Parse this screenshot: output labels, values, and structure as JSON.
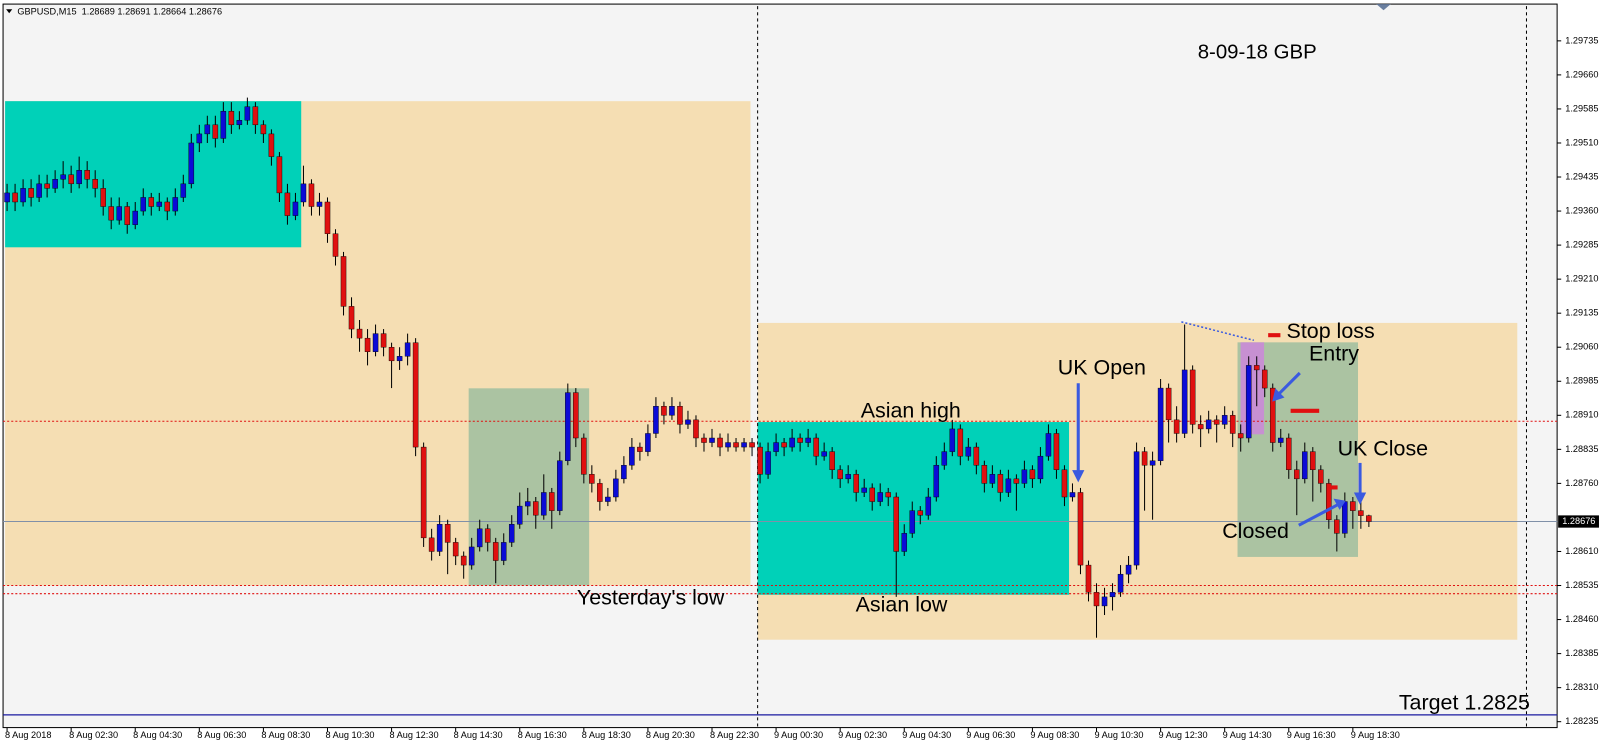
{
  "chart_data": {
    "type": "candlestick",
    "header": "GBPUSD,M15  1.28689 1.28691 1.28664 1.28676",
    "colors": {
      "up": "#0b0bd6",
      "down": "#e01010",
      "wick": "#000000",
      "level": "#e01010",
      "target": "#1a1aa0",
      "current": "#8090a8"
    },
    "xlim": [
      -0.5,
      193.5
    ],
    "ylim": [
      1.28222,
      1.29807
    ],
    "yticks": [
      1.29735,
      {
        "value": 1.2966,
        "label": "1.29660"
      },
      1.29585,
      {
        "value": 1.2951,
        "label": "1.29510"
      },
      1.29435,
      {
        "value": 1.2936,
        "label": "1.29360"
      },
      1.29285,
      {
        "value": 1.2921,
        "label": "1.29210"
      },
      1.29135,
      {
        "value": 1.2906,
        "label": "1.29060"
      },
      1.28985,
      {
        "value": 1.2891,
        "label": "1.28910"
      },
      1.28835,
      {
        "value": 1.2876,
        "label": "1.28760"
      },
      {
        "value": 1.2861,
        "label": "1.28610"
      },
      1.28535,
      {
        "value": 1.2846,
        "label": "1.28460"
      },
      1.28385,
      {
        "value": 1.2831,
        "label": "1.28310"
      },
      1.28235
    ],
    "xticks": [
      {
        "value": 0,
        "label": "8 Aug 2018"
      },
      {
        "value": 8,
        "label": "8 Aug 02:30"
      },
      {
        "value": 16,
        "label": "8 Aug 04:30"
      },
      {
        "value": 24,
        "label": "8 Aug 06:30"
      },
      {
        "value": 32,
        "label": "8 Aug 08:30"
      },
      {
        "value": 40,
        "label": "8 Aug 10:30"
      },
      {
        "value": 48,
        "label": "8 Aug 12:30"
      },
      {
        "value": 56,
        "label": "8 Aug 14:30"
      },
      {
        "value": 64,
        "label": "8 Aug 16:30"
      },
      {
        "value": 72,
        "label": "8 Aug 18:30"
      },
      {
        "value": 80,
        "label": "8 Aug 20:30"
      },
      {
        "value": 88,
        "label": "8 Aug 22:30"
      },
      {
        "value": 96,
        "label": "9 Aug 00:30"
      },
      {
        "value": 104,
        "label": "9 Aug 02:30"
      },
      {
        "value": 112,
        "label": "9 Aug 04:30"
      },
      {
        "value": 120,
        "label": "9 Aug 06:30"
      },
      {
        "value": 128,
        "label": "9 Aug 08:30"
      },
      {
        "value": 136,
        "label": "9 Aug 10:30"
      },
      {
        "value": 144,
        "label": "9 Aug 12:30"
      },
      {
        "value": 152,
        "label": "9 Aug 14:30"
      },
      {
        "value": 160,
        "label": "9 Aug 16:30"
      },
      {
        "value": 168,
        "label": "9 Aug 18:30"
      }
    ],
    "current_price": 1.28676,
    "levels": [
      1.28897,
      1.28535,
      1.28517
    ],
    "target": {
      "value": 1.2825,
      "label": "Target  1.2825"
    },
    "annotations": [
      "8-09-18  GBP",
      "Stop loss",
      "Entry",
      "UK Open",
      "Asian high",
      "UK Close",
      "Closed",
      "Yesterday's low",
      "Asian low"
    ],
    "candles": [
      [
        1.2938,
        1.2942,
        1.2936,
        1.294
      ],
      [
        1.294,
        1.2942,
        1.2936,
        1.2938
      ],
      [
        1.2938,
        1.2943,
        1.2937,
        1.2941
      ],
      [
        1.2941,
        1.2943,
        1.2937,
        1.2939
      ],
      [
        1.2939,
        1.2944,
        1.2938,
        1.2942
      ],
      [
        1.2942,
        1.2944,
        1.2939,
        1.2941
      ],
      [
        1.2941,
        1.2945,
        1.294,
        1.2943
      ],
      [
        1.2943,
        1.2947,
        1.2941,
        1.2944
      ],
      [
        1.2944,
        1.2946,
        1.294,
        1.2942
      ],
      [
        1.2942,
        1.2948,
        1.2941,
        1.2945
      ],
      [
        1.2945,
        1.2947,
        1.2941,
        1.2943
      ],
      [
        1.2943,
        1.2945,
        1.2939,
        1.2941
      ],
      [
        1.2941,
        1.2943,
        1.2935,
        1.2937
      ],
      [
        1.2937,
        1.2939,
        1.2932,
        1.2934
      ],
      [
        1.2934,
        1.2939,
        1.2933,
        1.2937
      ],
      [
        1.2937,
        1.2938,
        1.2931,
        1.2933
      ],
      [
        1.2933,
        1.2938,
        1.2932,
        1.2936
      ],
      [
        1.2936,
        1.2941,
        1.2935,
        1.2939
      ],
      [
        1.2939,
        1.294,
        1.2935,
        1.2937
      ],
      [
        1.2937,
        1.294,
        1.2936,
        1.2938
      ],
      [
        1.2938,
        1.2939,
        1.2934,
        1.2936
      ],
      [
        1.2936,
        1.2941,
        1.2935,
        1.2939
      ],
      [
        1.2939,
        1.2944,
        1.2938,
        1.2942
      ],
      [
        1.2942,
        1.2953,
        1.2941,
        1.2951
      ],
      [
        1.2951,
        1.2955,
        1.2949,
        1.2953
      ],
      [
        1.2953,
        1.2957,
        1.2951,
        1.2955
      ],
      [
        1.2955,
        1.2957,
        1.295,
        1.2952
      ],
      [
        1.2952,
        1.296,
        1.2951,
        1.2958
      ],
      [
        1.2958,
        1.296,
        1.2953,
        1.2955
      ],
      [
        1.2955,
        1.2958,
        1.2954,
        1.2956
      ],
      [
        1.2956,
        1.2961,
        1.2955,
        1.2959
      ],
      [
        1.2959,
        1.296,
        1.2953,
        1.2955
      ],
      [
        1.2955,
        1.2956,
        1.2951,
        1.2953
      ],
      [
        1.2953,
        1.2954,
        1.2946,
        1.2948
      ],
      [
        1.2948,
        1.2949,
        1.2938,
        1.294
      ],
      [
        1.294,
        1.2942,
        1.2933,
        1.2935
      ],
      [
        1.2935,
        1.294,
        1.2934,
        1.2938
      ],
      [
        1.2938,
        1.2946,
        1.2937,
        1.2942
      ],
      [
        1.2942,
        1.2943,
        1.2935,
        1.2937
      ],
      [
        1.2937,
        1.294,
        1.2935,
        1.2938
      ],
      [
        1.2938,
        1.2939,
        1.2929,
        1.2931
      ],
      [
        1.2931,
        1.2932,
        1.2924,
        1.2926
      ],
      [
        1.2926,
        1.2927,
        1.2913,
        1.2915
      ],
      [
        1.2915,
        1.2917,
        1.2908,
        1.291
      ],
      [
        1.291,
        1.2912,
        1.2905,
        1.2908
      ],
      [
        1.2908,
        1.291,
        1.2902,
        1.2905
      ],
      [
        1.2905,
        1.2911,
        1.2904,
        1.2909
      ],
      [
        1.2909,
        1.291,
        1.2904,
        1.2906
      ],
      [
        1.2906,
        1.2907,
        1.2897,
        1.2903
      ],
      [
        1.2903,
        1.2906,
        1.2901,
        1.2904
      ],
      [
        1.2904,
        1.2909,
        1.2902,
        1.2907
      ],
      [
        1.2907,
        1.2908,
        1.2882,
        1.2884
      ],
      [
        1.2884,
        1.2885,
        1.2862,
        1.2864
      ],
      [
        1.2864,
        1.2866,
        1.2859,
        1.2861
      ],
      [
        1.2861,
        1.2869,
        1.286,
        1.2867
      ],
      [
        1.2867,
        1.2868,
        1.2856,
        1.2863
      ],
      [
        1.2863,
        1.2864,
        1.2858,
        1.286
      ],
      [
        1.286,
        1.2861,
        1.2855,
        1.2858
      ],
      [
        1.2858,
        1.2864,
        1.2857,
        1.2862
      ],
      [
        1.2862,
        1.2868,
        1.2861,
        1.2866
      ],
      [
        1.2866,
        1.2867,
        1.2861,
        1.2863
      ],
      [
        1.2863,
        1.2864,
        1.2854,
        1.2859
      ],
      [
        1.2859,
        1.2865,
        1.2858,
        1.2863
      ],
      [
        1.2863,
        1.2869,
        1.2862,
        1.2867
      ],
      [
        1.2867,
        1.2874,
        1.2866,
        1.2871
      ],
      [
        1.2871,
        1.2875,
        1.2869,
        1.2872
      ],
      [
        1.2872,
        1.2873,
        1.2866,
        1.2869
      ],
      [
        1.2869,
        1.2878,
        1.2868,
        1.2874
      ],
      [
        1.2874,
        1.2875,
        1.2866,
        1.287
      ],
      [
        1.287,
        1.2883,
        1.2869,
        1.2881
      ],
      [
        1.2881,
        1.2898,
        1.288,
        1.2896
      ],
      [
        1.2896,
        1.2897,
        1.2884,
        1.2886
      ],
      [
        1.2886,
        1.2887,
        1.2876,
        1.2878
      ],
      [
        1.2878,
        1.288,
        1.2874,
        1.2876
      ],
      [
        1.2876,
        1.2877,
        1.287,
        1.2872
      ],
      [
        1.2872,
        1.2875,
        1.2871,
        1.2873
      ],
      [
        1.2873,
        1.2879,
        1.2872,
        1.2877
      ],
      [
        1.2877,
        1.2882,
        1.2876,
        1.288
      ],
      [
        1.288,
        1.2886,
        1.2879,
        1.2884
      ],
      [
        1.2884,
        1.2885,
        1.2881,
        1.2883
      ],
      [
        1.2883,
        1.2889,
        1.2882,
        1.2887
      ],
      [
        1.2887,
        1.2895,
        1.2886,
        1.2893
      ],
      [
        1.2893,
        1.2894,
        1.2889,
        1.2891
      ],
      [
        1.2891,
        1.2895,
        1.289,
        1.2893
      ],
      [
        1.2893,
        1.2894,
        1.2887,
        1.2889
      ],
      [
        1.2889,
        1.2892,
        1.2888,
        1.289
      ],
      [
        1.289,
        1.2891,
        1.2884,
        1.2886
      ],
      [
        1.2886,
        1.2887,
        1.2883,
        1.2885
      ],
      [
        1.2885,
        1.2888,
        1.2884,
        1.2886
      ],
      [
        1.2886,
        1.2887,
        1.2882,
        1.2884
      ],
      [
        1.2884,
        1.2887,
        1.2883,
        1.2885
      ],
      [
        1.2885,
        1.2886,
        1.2883,
        1.2884
      ],
      [
        1.2884,
        1.2886,
        1.2883,
        1.2885
      ],
      [
        1.2885,
        1.2886,
        1.2882,
        1.2884
      ],
      [
        1.2884,
        1.2885,
        1.2876,
        1.2878
      ],
      [
        1.2878,
        1.2885,
        1.2877,
        1.2883
      ],
      [
        1.2883,
        1.2887,
        1.2882,
        1.2885
      ],
      [
        1.2885,
        1.2886,
        1.2882,
        1.2884
      ],
      [
        1.2884,
        1.2888,
        1.2883,
        1.2886
      ],
      [
        1.2886,
        1.2887,
        1.2883,
        1.2885
      ],
      [
        1.2885,
        1.2888,
        1.2884,
        1.2886
      ],
      [
        1.2886,
        1.2887,
        1.288,
        1.2882
      ],
      [
        1.2882,
        1.2885,
        1.2881,
        1.2883
      ],
      [
        1.2883,
        1.2884,
        1.2877,
        1.2879
      ],
      [
        1.2879,
        1.288,
        1.2875,
        1.2877
      ],
      [
        1.2877,
        1.288,
        1.2876,
        1.2878
      ],
      [
        1.2878,
        1.2879,
        1.2872,
        1.2874
      ],
      [
        1.2874,
        1.2877,
        1.2873,
        1.2875
      ],
      [
        1.2875,
        1.2876,
        1.287,
        1.2872
      ],
      [
        1.2872,
        1.2876,
        1.2871,
        1.2874
      ],
      [
        1.2874,
        1.2875,
        1.2871,
        1.2873
      ],
      [
        1.2873,
        1.2874,
        1.2851,
        1.2861
      ],
      [
        1.2861,
        1.2867,
        1.286,
        1.2865
      ],
      [
        1.2865,
        1.2872,
        1.2864,
        1.287
      ],
      [
        1.287,
        1.2871,
        1.2867,
        1.2869
      ],
      [
        1.2869,
        1.2875,
        1.2868,
        1.2873
      ],
      [
        1.2873,
        1.2882,
        1.2872,
        1.288
      ],
      [
        1.288,
        1.2885,
        1.2879,
        1.2883
      ],
      [
        1.2883,
        1.289,
        1.2882,
        1.2888
      ],
      [
        1.2888,
        1.2889,
        1.288,
        1.2882
      ],
      [
        1.2882,
        1.2886,
        1.2881,
        1.2884
      ],
      [
        1.2884,
        1.2885,
        1.2878,
        1.288
      ],
      [
        1.288,
        1.2881,
        1.2874,
        1.2876
      ],
      [
        1.2876,
        1.288,
        1.2875,
        1.2878
      ],
      [
        1.2878,
        1.2879,
        1.2872,
        1.2874
      ],
      [
        1.2874,
        1.2879,
        1.2873,
        1.2877
      ],
      [
        1.2877,
        1.2878,
        1.287,
        1.2876
      ],
      [
        1.2876,
        1.2881,
        1.2875,
        1.2879
      ],
      [
        1.2879,
        1.288,
        1.2875,
        1.2877
      ],
      [
        1.2877,
        1.2884,
        1.2876,
        1.2882
      ],
      [
        1.2882,
        1.2889,
        1.2881,
        1.2887
      ],
      [
        1.2887,
        1.2888,
        1.2877,
        1.2879
      ],
      [
        1.2879,
        1.288,
        1.2871,
        1.2873
      ],
      [
        1.2873,
        1.2876,
        1.2872,
        1.2874
      ],
      [
        1.2874,
        1.2875,
        1.2856,
        1.2858
      ],
      [
        1.2858,
        1.2859,
        1.285,
        1.2852
      ],
      [
        1.2852,
        1.2854,
        1.2842,
        1.2849
      ],
      [
        1.2849,
        1.2853,
        1.2847,
        1.2851
      ],
      [
        1.2851,
        1.2854,
        1.2848,
        1.2852
      ],
      [
        1.2852,
        1.2858,
        1.2851,
        1.2856
      ],
      [
        1.2856,
        1.286,
        1.2854,
        1.2858
      ],
      [
        1.2858,
        1.2885,
        1.2857,
        1.2883
      ],
      [
        1.2883,
        1.2884,
        1.287,
        1.288
      ],
      [
        1.288,
        1.2883,
        1.2868,
        1.2881
      ],
      [
        1.2881,
        1.2899,
        1.288,
        1.2897
      ],
      [
        1.2897,
        1.2898,
        1.2885,
        1.289
      ],
      [
        1.289,
        1.2893,
        1.2885,
        1.2887
      ],
      [
        1.2887,
        1.2911,
        1.2886,
        1.2901
      ],
      [
        1.2901,
        1.2902,
        1.2887,
        1.2889
      ],
      [
        1.2889,
        1.2891,
        1.2884,
        1.2888
      ],
      [
        1.2888,
        1.2892,
        1.2887,
        1.289
      ],
      [
        1.289,
        1.2891,
        1.2885,
        1.2889
      ],
      [
        1.2889,
        1.2893,
        1.2888,
        1.2891
      ],
      [
        1.2891,
        1.2892,
        1.2884,
        1.2887
      ],
      [
        1.2887,
        1.2889,
        1.2883,
        1.2886
      ],
      [
        1.2886,
        1.2904,
        1.2885,
        1.2902
      ],
      [
        1.2902,
        1.2904,
        1.2893,
        1.2901
      ],
      [
        1.2901,
        1.2902,
        1.2895,
        1.2897
      ],
      [
        1.2897,
        1.2898,
        1.2883,
        1.2885
      ],
      [
        1.2885,
        1.2888,
        1.2884,
        1.2886
      ],
      [
        1.2886,
        1.2887,
        1.2877,
        1.2879
      ],
      [
        1.2879,
        1.2881,
        1.2869,
        1.2877
      ],
      [
        1.2877,
        1.2885,
        1.2876,
        1.2883
      ],
      [
        1.2883,
        1.2884,
        1.2872,
        1.2879
      ],
      [
        1.2879,
        1.288,
        1.2874,
        1.2876
      ],
      [
        1.2876,
        1.2877,
        1.2866,
        1.2868
      ],
      [
        1.2868,
        1.2869,
        1.2861,
        1.2865
      ],
      [
        1.2865,
        1.2874,
        1.2864,
        1.2872
      ],
      [
        1.2872,
        1.2873,
        1.2866,
        1.287
      ],
      [
        1.287,
        1.2872,
        1.2866,
        1.28689
      ],
      [
        1.28689,
        1.28691,
        1.28664,
        1.28676
      ]
    ]
  }
}
